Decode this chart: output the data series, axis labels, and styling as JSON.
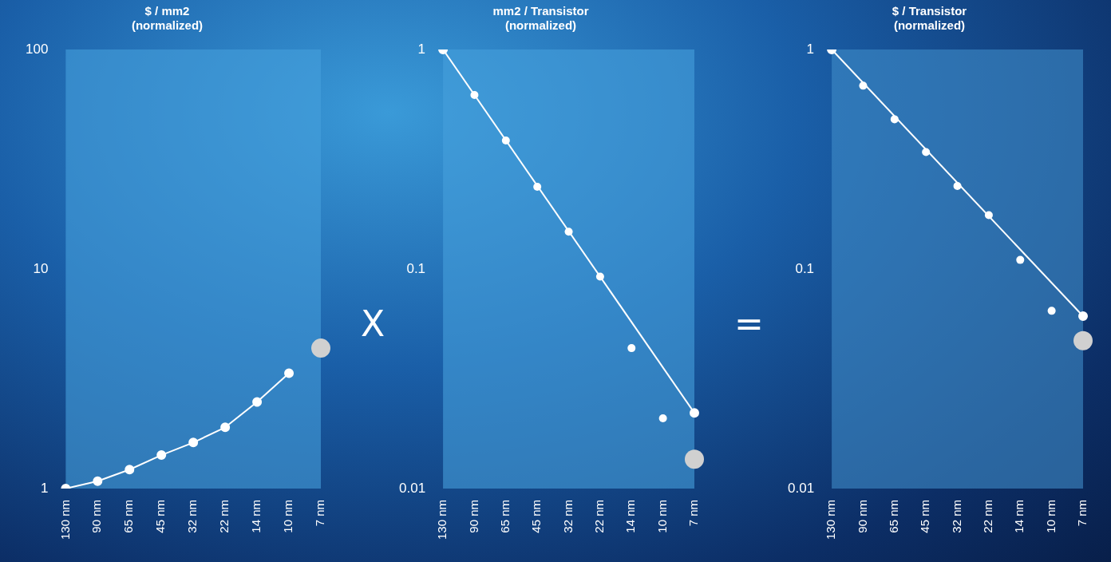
{
  "chart_data": [
    {
      "type": "line",
      "title": "$ / mm2",
      "subtitle": "(normalized)",
      "categories": [
        "130 nm",
        "90 nm",
        "65 nm",
        "45 nm",
        "32 nm",
        "22 nm",
        "14 nm",
        "10 nm",
        "7 nm"
      ],
      "log": "y",
      "ylim": [
        1,
        100
      ],
      "yticks": [
        1,
        10,
        100
      ],
      "bands": [
        {
          "axis": "y",
          "from": 1,
          "to": 100,
          "color": "#46a0dc"
        }
      ],
      "grid": false,
      "legend": false,
      "marker": "circle",
      "annotations": [
        "X"
      ],
      "series": [
        {
          "type": "line",
          "color": "#ffffff",
          "values": [
            1,
            1.08,
            1.22,
            1.42,
            1.62,
            1.9,
            2.48,
            3.35,
            null
          ]
        },
        {
          "type": "scatter",
          "color": "#d0d0d0",
          "values": [
            null,
            null,
            null,
            null,
            null,
            null,
            null,
            null,
            4.36
          ]
        }
      ]
    },
    {
      "type": "line",
      "title": "mm2 / Transistor",
      "subtitle": "(normalized)",
      "categories": [
        "130 nm",
        "90 nm",
        "65 nm",
        "45 nm",
        "32 nm",
        "22 nm",
        "14 nm",
        "10 nm",
        "7 nm"
      ],
      "log": "y",
      "ylim": [
        0.01,
        1
      ],
      "yticks": [
        0.01,
        0.1,
        1
      ],
      "bands": [
        {
          "axis": "y",
          "from": 0.01,
          "to": 1,
          "color": "#46a0dc"
        }
      ],
      "grid": false,
      "legend": false,
      "marker": "circle",
      "annotations": [
        "="
      ],
      "series": [
        {
          "type": "line",
          "color": "#ffffff",
          "values": [
            1,
            null,
            null,
            null,
            null,
            null,
            null,
            null,
            0.0221
          ]
        },
        {
          "type": "scatter",
          "color": "#ffffff",
          "values": [
            1,
            0.62,
            0.385,
            0.237,
            0.148,
            0.0924,
            0.0436,
            0.0209,
            null
          ]
        },
        {
          "type": "scatter",
          "color": "#d0d0d0",
          "values": [
            null,
            null,
            null,
            null,
            null,
            null,
            null,
            null,
            0.0136
          ]
        }
      ]
    },
    {
      "type": "line",
      "title": "$ / Transistor",
      "subtitle": "(normalized)",
      "categories": [
        "130 nm",
        "90 nm",
        "65 nm",
        "45 nm",
        "32 nm",
        "22 nm",
        "14 nm",
        "10 nm",
        "7 nm"
      ],
      "log": "y",
      "ylim": [
        0.01,
        1
      ],
      "yticks": [
        0.01,
        0.1,
        1
      ],
      "bands": [
        {
          "axis": "y",
          "from": 0.01,
          "to": 1,
          "color": "#3f8cc8"
        }
      ],
      "grid": false,
      "legend": false,
      "marker": "circle",
      "series": [
        {
          "type": "line",
          "color": "#ffffff",
          "values": [
            1,
            null,
            null,
            null,
            null,
            null,
            null,
            null,
            0.061
          ]
        },
        {
          "type": "scatter",
          "color": "#ffffff",
          "values": [
            1,
            0.684,
            0.481,
            0.341,
            0.239,
            0.176,
            0.11,
            0.0645,
            null
          ]
        },
        {
          "type": "scatter",
          "color": "#d0d0d0",
          "values": [
            null,
            null,
            null,
            null,
            null,
            null,
            null,
            null,
            0.0472
          ]
        }
      ]
    }
  ]
}
